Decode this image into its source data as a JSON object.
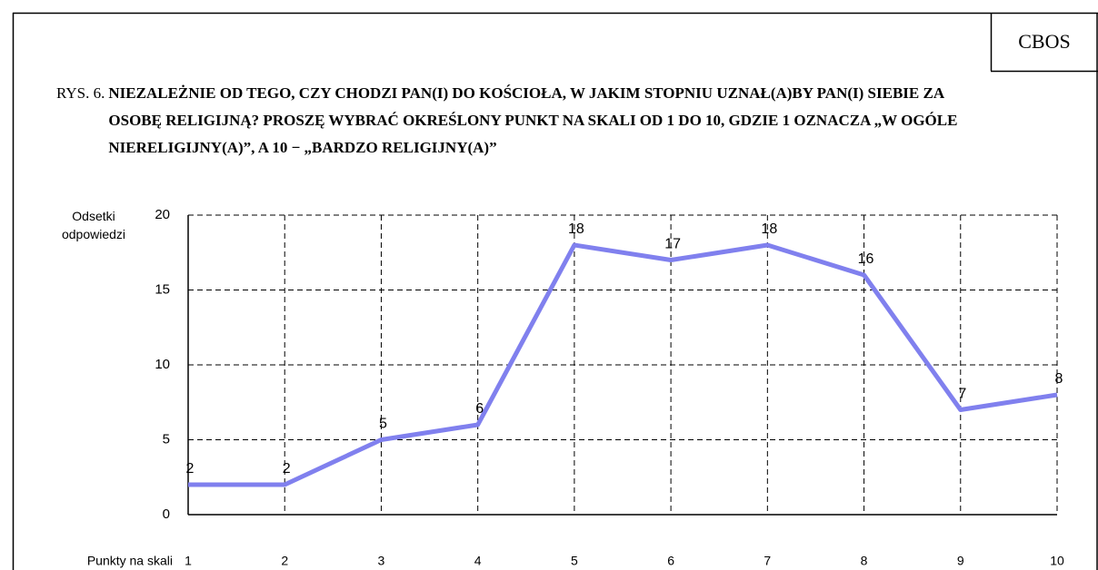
{
  "brand": "CBOS",
  "chart_data": {
    "type": "line",
    "figure_label": "RYS. 6.",
    "title": "NIEZALEŻNIE OD TEGO, CZY CHODZI PAN(I) DO KOŚCIOŁA, W JAKIM STOPNIU UZNAŁ(A)BY PAN(I) SIEBIE ZA OSOBĘ RELIGIJNĄ? PROSZĘ WYBRAĆ OKREŚLONY PUNKT NA SKALI OD 1 DO 10, GDZIE 1 OZNACZA „W OGÓLE NIERELIGIJNY(A)”, A 10 − „BARDZO RELIGIJNY(A)”",
    "ylabel": "Odsetki odpowiedzi",
    "xlabel": "Punkty na skali",
    "x": [
      1,
      2,
      3,
      4,
      5,
      6,
      7,
      8,
      9,
      10
    ],
    "series": [
      {
        "name": "Odsetki odpowiedzi",
        "color": "#8080ee",
        "values": [
          2,
          2,
          5,
          6,
          18,
          17,
          18,
          16,
          7,
          8
        ]
      }
    ],
    "xlim": [
      1,
      10
    ],
    "xticks": [
      1,
      2,
      3,
      4,
      5,
      6,
      7,
      8,
      9,
      10
    ],
    "ylim": [
      0,
      20
    ],
    "yticks": [
      0,
      5,
      10,
      15,
      20
    ],
    "grid": true
  }
}
